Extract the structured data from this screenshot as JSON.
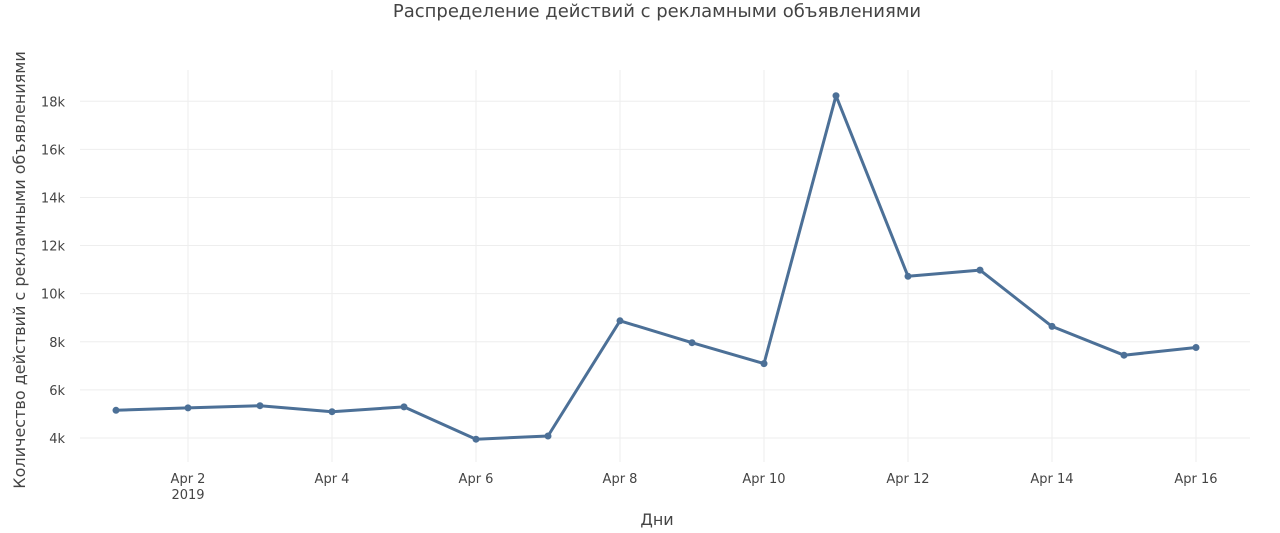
{
  "colors": {
    "series": "#4c7097",
    "grid": "#eeeeee",
    "text": "#444444"
  },
  "chart_data": {
    "type": "line",
    "title": "Распределение действий с рекламными объявлениями",
    "xlabel": "Дни",
    "ylabel": "Количество действий с рекламными объявлениями",
    "x_type": "date",
    "x_ticks": [
      {
        "date": "2019-04-02",
        "label": "Apr 2",
        "sublabel": "2019"
      },
      {
        "date": "2019-04-04",
        "label": "Apr 4"
      },
      {
        "date": "2019-04-06",
        "label": "Apr 6"
      },
      {
        "date": "2019-04-08",
        "label": "Apr 8"
      },
      {
        "date": "2019-04-10",
        "label": "Apr 10"
      },
      {
        "date": "2019-04-12",
        "label": "Apr 12"
      },
      {
        "date": "2019-04-14",
        "label": "Apr 14"
      },
      {
        "date": "2019-04-16",
        "label": "Apr 16"
      }
    ],
    "y_ticks": [
      {
        "value": 4000,
        "label": "4k"
      },
      {
        "value": 6000,
        "label": "6k"
      },
      {
        "value": 8000,
        "label": "8k"
      },
      {
        "value": 10000,
        "label": "10k"
      },
      {
        "value": 12000,
        "label": "12k"
      },
      {
        "value": 14000,
        "label": "14k"
      },
      {
        "value": 16000,
        "label": "16k"
      },
      {
        "value": 18000,
        "label": "18k"
      }
    ],
    "xlim": [
      "2019-03-31T12:00:00",
      "2019-04-16T18:00:00"
    ],
    "ylim": [
      3000,
      19300
    ],
    "grid": true,
    "series": [
      {
        "points": [
          {
            "x": "2019-04-01",
            "y": 5150
          },
          {
            "x": "2019-04-02",
            "y": 5250
          },
          {
            "x": "2019-04-03",
            "y": 5340
          },
          {
            "x": "2019-04-04",
            "y": 5090
          },
          {
            "x": "2019-04-05",
            "y": 5290
          },
          {
            "x": "2019-04-06",
            "y": 3950
          },
          {
            "x": "2019-04-07",
            "y": 4080
          },
          {
            "x": "2019-04-08",
            "y": 8870
          },
          {
            "x": "2019-04-09",
            "y": 7960
          },
          {
            "x": "2019-04-10",
            "y": 7090
          },
          {
            "x": "2019-04-11",
            "y": 18230
          },
          {
            "x": "2019-04-12",
            "y": 10720
          },
          {
            "x": "2019-04-13",
            "y": 10980
          },
          {
            "x": "2019-04-14",
            "y": 8640
          },
          {
            "x": "2019-04-15",
            "y": 7440
          },
          {
            "x": "2019-04-16",
            "y": 7760
          }
        ]
      }
    ]
  }
}
